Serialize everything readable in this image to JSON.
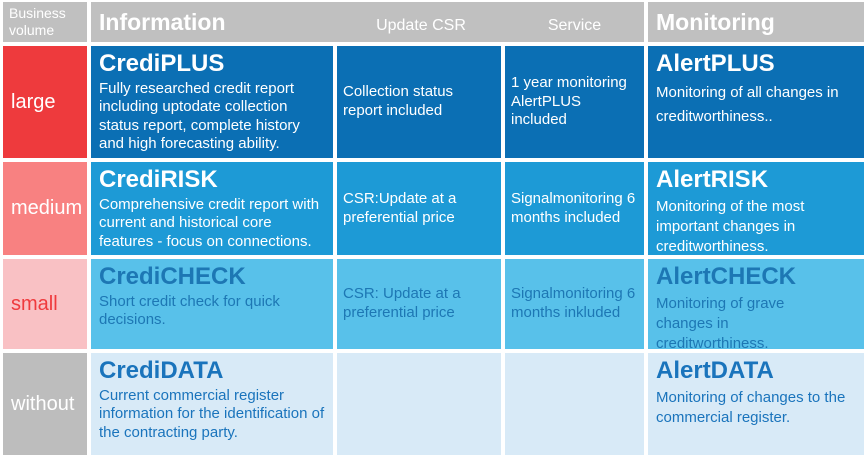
{
  "header": {
    "business_volume": "Business volume",
    "information": "Information",
    "update_csr": "Update CSR",
    "service": "Service",
    "monitoring": "Monitoring"
  },
  "rows": [
    {
      "volume": "large",
      "product_name": "CrediPLUS",
      "product_desc": "Fully researched credit report including uptodate collection status report, complete history and high forecasting ability.",
      "update_csr": "Collection status report included",
      "service": "1 year monitoring AlertPLUS included",
      "monitoring_name": "AlertPLUS",
      "monitoring_desc": "Monitoring of all changes in creditworthiness.."
    },
    {
      "volume": "medium",
      "product_name": "CrediRISK",
      "product_desc": "Comprehensive credit report with current and historical core features - focus on connections.",
      "update_csr": "CSR:Update at a preferential price",
      "service": "Signalmonitoring 6 months included",
      "monitoring_name": "AlertRISK",
      "monitoring_desc": "Monitoring of the most important changes in creditworthiness."
    },
    {
      "volume": "small",
      "product_name": "CrediCHECK",
      "product_desc": "Short credit check for quick decisions.",
      "update_csr": "CSR: Update at a preferential price",
      "service": "Signalmonitoring 6 months inkluded",
      "monitoring_name": "AlertCHECK",
      "monitoring_desc": "Monitoring of grave changes in creditworthiness."
    },
    {
      "volume": "without",
      "product_name": "CrediDATA",
      "product_desc": "Current commercial register information for the identification of the contracting party.",
      "update_csr": "",
      "service": "",
      "monitoring_name": "AlertDATA",
      "monitoring_desc": "Monitoring of changes to the commercial register."
    }
  ],
  "palette": {
    "header_gray": "#c0c0c0",
    "volume_large_red": "#ee3a3d",
    "volume_medium_salmon": "#f88181",
    "volume_small_pink": "#f9c1c4",
    "volume_without_gray": "#bdbdbd",
    "row1_blue": "#0b6fb4",
    "row2_blue": "#1d9ad6",
    "row3_blue": "#58c1ea",
    "row4_blue": "#d8eaf7",
    "blue_text": "#1a74bc",
    "red_text": "#ef3a3d"
  },
  "chart_data": {
    "type": "table",
    "columns": [
      "Business volume",
      "Information",
      "Update CSR",
      "Service",
      "Monitoring"
    ],
    "rows": [
      [
        "large",
        "CrediPLUS: Fully researched credit report including uptodate collection status report, complete history and high forecasting ability.",
        "Collection status report included",
        "1 year monitoring AlertPLUS included",
        "AlertPLUS: Monitoring of all changes in creditworthiness.."
      ],
      [
        "medium",
        "CrediRISK: Comprehensive credit report with current and historical core features - focus on connections.",
        "CSR:Update at a preferential price",
        "Signalmonitoring 6 months included",
        "AlertRISK: Monitoring of the most important changes in creditworthiness."
      ],
      [
        "small",
        "CrediCHECK: Short credit check for quick decisions.",
        "CSR: Update at a preferential price",
        "Signalmonitoring 6 months inkluded",
        "AlertCHECK: Monitoring of grave changes in creditworthiness."
      ],
      [
        "without",
        "CrediDATA: Current commercial register information for the identification of the contracting party.",
        "",
        "",
        "AlertDATA: Monitoring of changes to the commercial register."
      ]
    ]
  }
}
